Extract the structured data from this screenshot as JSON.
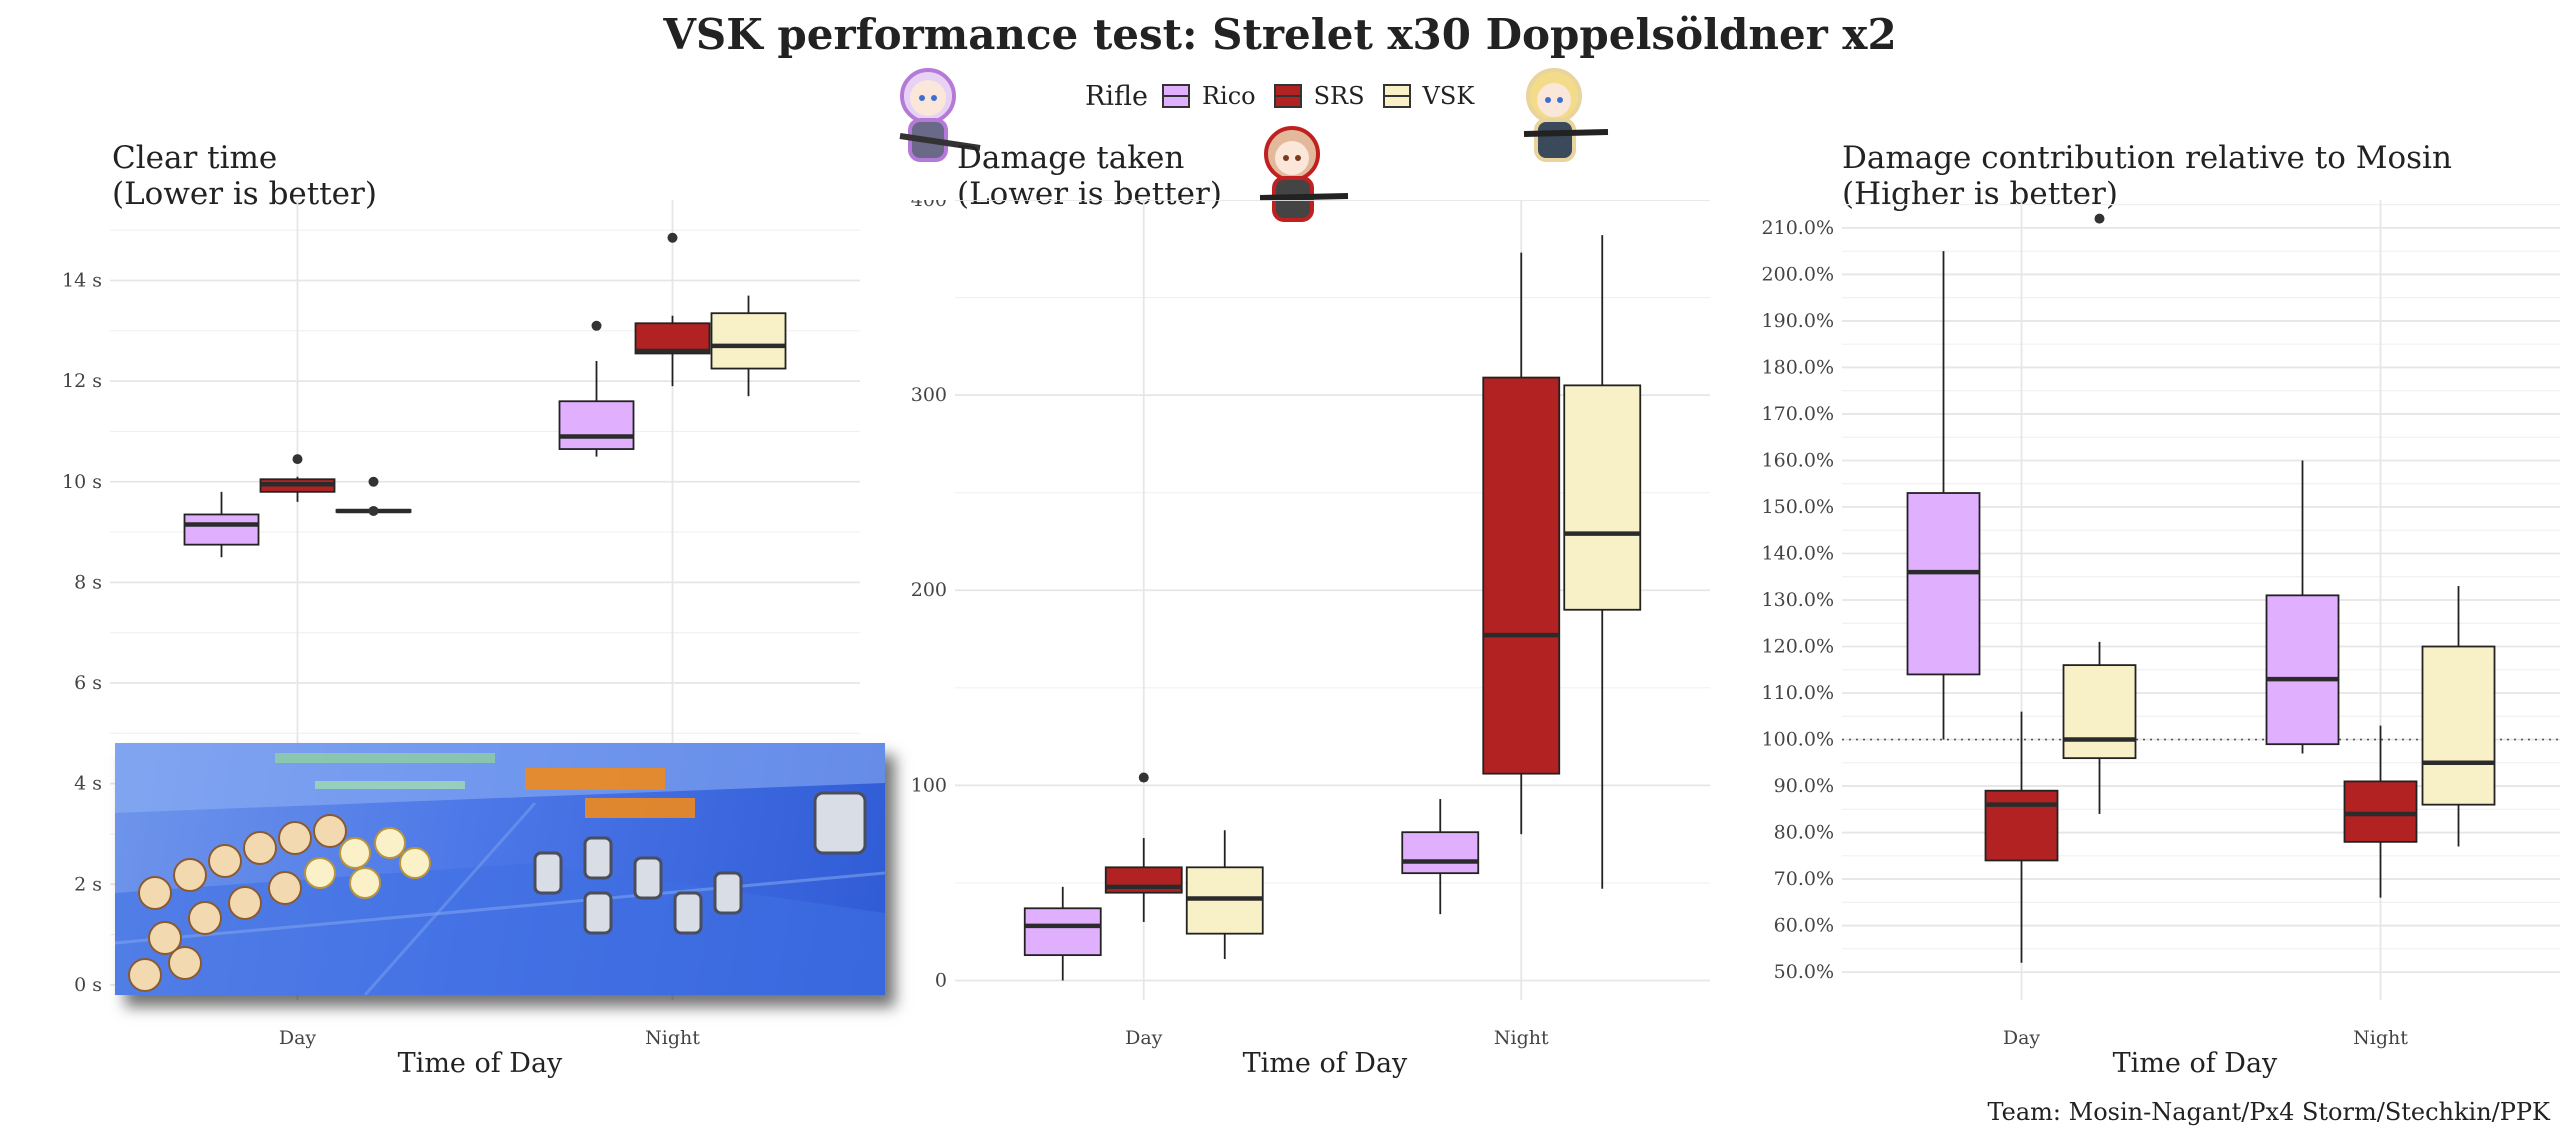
{
  "figure": {
    "title": "VSK performance test: Strelet x30 Doppelsöldner x2",
    "caption": "Team: Mosin-Nagant/Px4 Storm/Stechkin/PPK",
    "legend": {
      "title": "Rifle",
      "items": [
        "Rico",
        "SRS",
        "VSK"
      ]
    },
    "colors": {
      "Rico": "#e0b0ff",
      "SRS": "#b22222",
      "VSK": "#f8f1c8"
    }
  },
  "chart_data": [
    {
      "type": "box",
      "title_lines": [
        "Clear time",
        "(Lower is better)"
      ],
      "xlabel": "Time of Day",
      "categories": [
        "Day",
        "Night"
      ],
      "series_order": [
        "Rico",
        "SRS",
        "VSK"
      ],
      "ylim": [
        -0.3,
        15.6
      ],
      "yticks": [
        0,
        2,
        4,
        6,
        8,
        10,
        12,
        14
      ],
      "yunit": " s",
      "boxes": {
        "Day": {
          "Rico": {
            "min": 8.5,
            "q1": 8.75,
            "median": 9.15,
            "q3": 9.35,
            "max": 9.8,
            "outliers": []
          },
          "SRS": {
            "min": 9.6,
            "q1": 9.8,
            "median": 9.95,
            "q3": 10.05,
            "max": 10.1,
            "outliers": [
              10.45
            ]
          },
          "VSK": {
            "min": 9.38,
            "q1": 9.4,
            "median": 9.42,
            "q3": 9.44,
            "max": 9.46,
            "outliers": [
              10.0,
              9.42
            ]
          }
        },
        "Night": {
          "Rico": {
            "min": 10.5,
            "q1": 10.65,
            "median": 10.9,
            "q3": 11.6,
            "max": 12.4,
            "outliers": [
              13.1
            ]
          },
          "SRS": {
            "min": 11.9,
            "q1": 12.55,
            "median": 12.6,
            "q3": 13.15,
            "max": 13.3,
            "outliers": [
              14.85
            ]
          },
          "VSK": {
            "min": 11.7,
            "q1": 12.25,
            "median": 12.7,
            "q3": 13.35,
            "max": 13.7,
            "outliers": []
          }
        }
      }
    },
    {
      "type": "box",
      "title_lines": [
        "Damage taken",
        "(Lower is better)"
      ],
      "xlabel": "Time of Day",
      "categories": [
        "Day",
        "Night"
      ],
      "series_order": [
        "Rico",
        "SRS",
        "VSK"
      ],
      "ylim": [
        -10,
        400
      ],
      "yticks": [
        0,
        100,
        200,
        300,
        400
      ],
      "yunit": "",
      "boxes": {
        "Day": {
          "Rico": {
            "min": 0,
            "q1": 13,
            "median": 28,
            "q3": 37,
            "max": 48,
            "outliers": []
          },
          "SRS": {
            "min": 30,
            "q1": 45,
            "median": 48,
            "q3": 58,
            "max": 73,
            "outliers": [
              104
            ]
          },
          "VSK": {
            "min": 11,
            "q1": 24,
            "median": 42,
            "q3": 58,
            "max": 77,
            "outliers": []
          }
        },
        "Night": {
          "Rico": {
            "min": 34,
            "q1": 55,
            "median": 61,
            "q3": 76,
            "max": 93,
            "outliers": []
          },
          "SRS": {
            "min": 75,
            "q1": 106,
            "median": 177,
            "q3": 309,
            "max": 373,
            "outliers": []
          },
          "VSK": {
            "min": 47,
            "q1": 190,
            "median": 229,
            "q3": 305,
            "max": 382,
            "outliers": []
          }
        }
      }
    },
    {
      "type": "box",
      "title_lines": [
        "Damage contribution relative to Mosin",
        "(Higher is better)"
      ],
      "xlabel": "Time of Day",
      "categories": [
        "Day",
        "Night"
      ],
      "series_order": [
        "Rico",
        "SRS",
        "VSK"
      ],
      "ylim": [
        44,
        216
      ],
      "yticks": [
        50,
        60,
        70,
        80,
        90,
        100,
        110,
        120,
        130,
        140,
        150,
        160,
        170,
        180,
        190,
        200,
        210
      ],
      "yunit": "%",
      "ytick_decimals": 1,
      "reference_line": 100,
      "boxes": {
        "Day": {
          "Rico": {
            "min": 100,
            "q1": 114,
            "median": 136,
            "q3": 153,
            "max": 205,
            "outliers": []
          },
          "SRS": {
            "min": 52,
            "q1": 74,
            "median": 86,
            "q3": 89,
            "max": 106,
            "outliers": []
          },
          "VSK": {
            "min": 84,
            "q1": 96,
            "median": 100,
            "q3": 116,
            "max": 121,
            "outliers": [
              212
            ]
          }
        },
        "Night": {
          "Rico": {
            "min": 97,
            "q1": 99,
            "median": 113,
            "q3": 131,
            "max": 160,
            "outliers": []
          },
          "SRS": {
            "min": 66,
            "q1": 78,
            "median": 84,
            "q3": 91,
            "max": 103,
            "outliers": []
          },
          "VSK": {
            "min": 77,
            "q1": 86,
            "median": 95,
            "q3": 120,
            "max": 133,
            "outliers": []
          }
        }
      }
    }
  ]
}
